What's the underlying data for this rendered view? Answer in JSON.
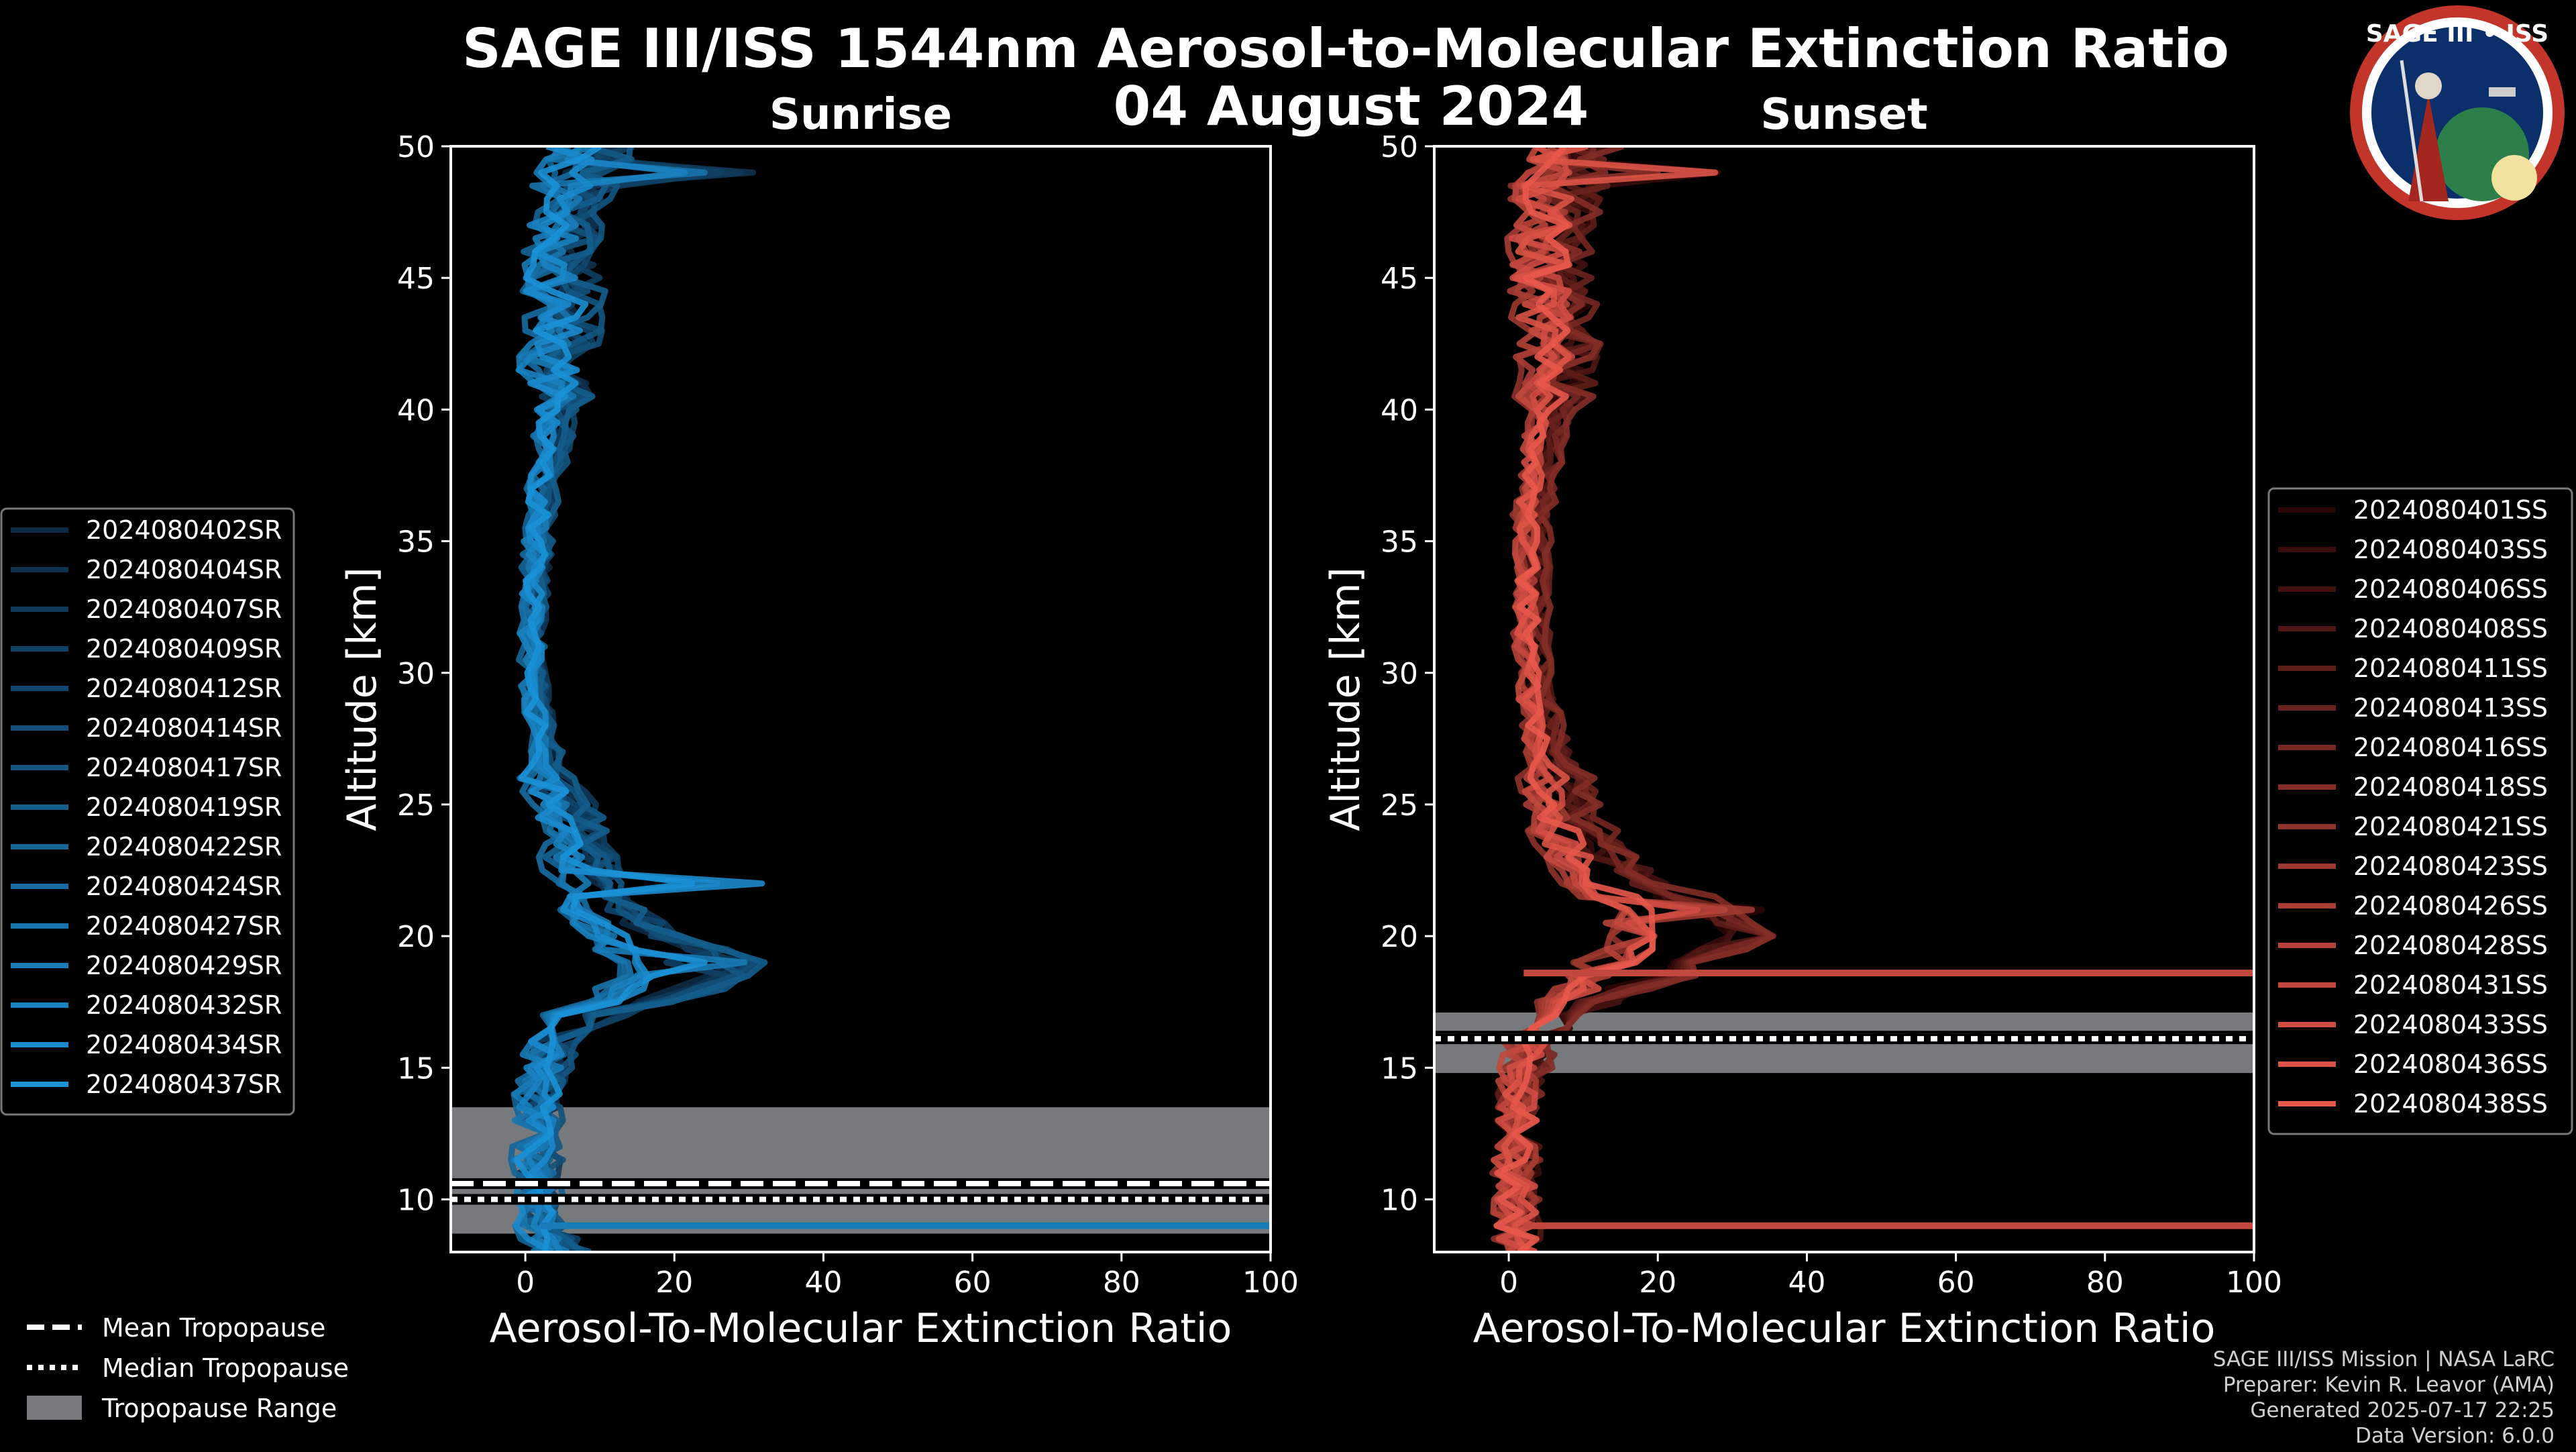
{
  "title": {
    "line1": "SAGE III/ISS 1544nm Aerosol-to-Molecular Extinction Ratio",
    "line2": "04 August 2024"
  },
  "logo": {
    "text": "SAGE III • ISS",
    "bg": "#0b2f6b",
    "ring": "#c3352b"
  },
  "colors": {
    "background": "#000000",
    "sunrise_dark": "#0d2a44",
    "sunrise_bright": "#1b91d6",
    "sunset_dark": "#2a0706",
    "sunset_bright": "#e8584b",
    "tropopause_range": "#777a7d"
  },
  "footer": {
    "line1": "SAGE III/ISS Mission | NASA LaRC",
    "line2": "Preparer: Kevin R. Leavor (AMA)",
    "line3": "Generated 2025-07-17 22:25",
    "line4": "Data Version: 6.0.0"
  },
  "tropopause_legend": {
    "mean": "Mean Tropopause",
    "median": "Median Tropopause",
    "range": "Tropopause Range"
  },
  "chart_data": [
    {
      "type": "line",
      "panel": "sunrise",
      "title": "Sunrise",
      "xlabel": "Aerosol-To-Molecular Extinction Ratio",
      "ylabel": "Altitude [km]",
      "xlim": [
        -10,
        100
      ],
      "ylim": [
        8,
        50
      ],
      "xticks": [
        0,
        20,
        40,
        60,
        80,
        100
      ],
      "yticks": [
        10,
        15,
        20,
        25,
        30,
        35,
        40,
        45,
        50
      ],
      "grid": false,
      "legend_position": "left",
      "tropopause": {
        "mean": 10.6,
        "median": 10.0,
        "range": [
          8.7,
          13.5
        ]
      },
      "series_names": [
        "2024080402SR",
        "2024080404SR",
        "2024080407SR",
        "2024080409SR",
        "2024080412SR",
        "2024080414SR",
        "2024080417SR",
        "2024080419SR",
        "2024080422SR",
        "2024080424SR",
        "2024080427SR",
        "2024080429SR",
        "2024080432SR",
        "2024080434SR",
        "2024080437SR"
      ],
      "profile_shape": {
        "altitudes_km": [
          8,
          9,
          10,
          12,
          14,
          16,
          17,
          18,
          19,
          20,
          21,
          22,
          23,
          24,
          25,
          26,
          28,
          30,
          32,
          34,
          36,
          38,
          40,
          42,
          44,
          46,
          48,
          50
        ],
        "typical_ratio": [
          4,
          2,
          1.5,
          1.5,
          2,
          3,
          8,
          18,
          22,
          14,
          10,
          8,
          7,
          6,
          5,
          3,
          2,
          1,
          1,
          1.5,
          2,
          3,
          4,
          4,
          5,
          4,
          6,
          8
        ],
        "peak_values": [
          {
            "altitude": 22.0,
            "value": 34
          },
          {
            "altitude": 19.0,
            "value": 31
          },
          {
            "altitude": 48.9,
            "value": 35
          },
          {
            "altitude": 9.0,
            "value": 100
          }
        ]
      }
    },
    {
      "type": "line",
      "panel": "sunset",
      "title": "Sunset",
      "xlabel": "Aerosol-To-Molecular Extinction Ratio",
      "ylabel": "Altitude [km]",
      "xlim": [
        -10,
        100
      ],
      "ylim": [
        8,
        50
      ],
      "xticks": [
        0,
        20,
        40,
        60,
        80,
        100
      ],
      "yticks": [
        10,
        15,
        20,
        25,
        30,
        35,
        40,
        45,
        50
      ],
      "grid": false,
      "legend_position": "right",
      "tropopause": {
        "mean": 16.2,
        "median": 16.1,
        "range": [
          14.8,
          17.1
        ]
      },
      "series_names": [
        "2024080401SS",
        "2024080403SS",
        "2024080406SS",
        "2024080408SS",
        "2024080411SS",
        "2024080413SS",
        "2024080416SS",
        "2024080418SS",
        "2024080421SS",
        "2024080423SS",
        "2024080426SS",
        "2024080428SS",
        "2024080431SS",
        "2024080433SS",
        "2024080436SS",
        "2024080438SS"
      ],
      "profile_shape": {
        "altitudes_km": [
          8,
          9,
          10,
          12,
          14,
          15,
          16,
          17,
          18,
          19,
          20,
          21,
          22,
          23,
          24,
          25,
          26,
          28,
          30,
          32,
          34,
          36,
          38,
          40,
          42,
          44,
          46,
          48,
          50
        ],
        "typical_ratio": [
          1,
          1,
          1,
          1,
          1,
          2,
          3,
          6,
          12,
          18,
          24,
          20,
          14,
          10,
          8,
          7,
          6,
          4,
          3,
          3,
          3,
          3,
          4,
          5,
          6,
          6,
          5,
          6,
          8
        ],
        "peak_values": [
          {
            "altitude": 20.8,
            "value": 38
          },
          {
            "altitude": 49.0,
            "value": 32
          },
          {
            "altitude": 18.6,
            "value": 100
          },
          {
            "altitude": 9.0,
            "value": 100
          }
        ]
      }
    }
  ]
}
